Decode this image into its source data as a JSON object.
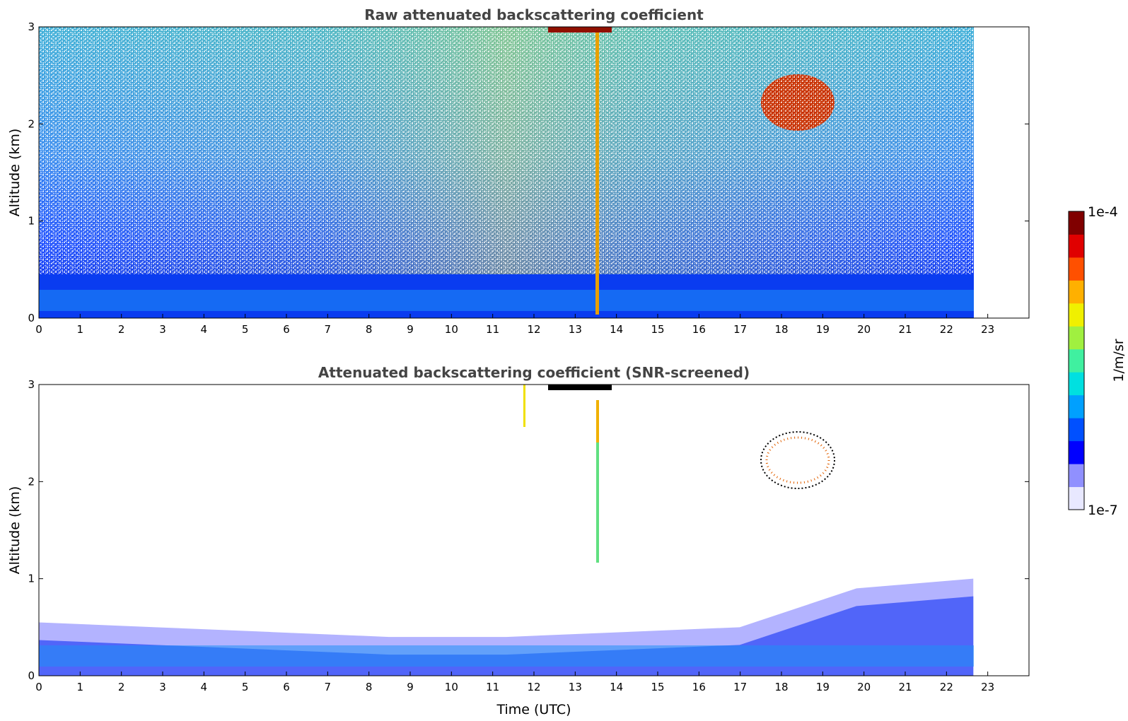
{
  "chart_data": [
    {
      "type": "heatmap",
      "title": "Raw attenuated backscattering coefficient",
      "xlabel": "",
      "ylabel": "Altitude (km)",
      "xlim": [
        0,
        24
      ],
      "ylim": [
        0,
        3
      ],
      "x_ticks": [
        "0",
        "1",
        "2",
        "3",
        "4",
        "5",
        "6",
        "7",
        "8",
        "9",
        "10",
        "11",
        "12",
        "13",
        "14",
        "15",
        "16",
        "17",
        "18",
        "19",
        "20",
        "21",
        "22",
        "23"
      ],
      "y_ticks": [
        "0",
        "1",
        "2",
        "3"
      ],
      "data_extent_x": [
        0,
        22.65
      ],
      "features": [
        {
          "kind": "boundary_layer",
          "top_km": 0.45
        },
        {
          "kind": "noisy_background",
          "range_km": [
            0.45,
            3
          ]
        },
        {
          "kind": "cloud",
          "x_range": [
            17.4,
            19.2
          ],
          "y_range_km": [
            1.9,
            2.6
          ]
        },
        {
          "kind": "vertical_streak",
          "x": 13.45,
          "y_range_km": [
            0,
            3
          ]
        },
        {
          "kind": "cloud_top",
          "x_range": [
            12.3,
            13.6
          ],
          "y_range_km": [
            2.9,
            3.0
          ]
        }
      ]
    },
    {
      "type": "heatmap",
      "title": "Attenuated backscattering coefficient (SNR-screened)",
      "xlabel": "Time (UTC)",
      "ylabel": "Altitude (km)",
      "xlim": [
        0,
        24
      ],
      "ylim": [
        0,
        3
      ],
      "x_ticks": [
        "0",
        "1",
        "2",
        "3",
        "4",
        "5",
        "6",
        "7",
        "8",
        "9",
        "10",
        "11",
        "12",
        "13",
        "14",
        "15",
        "16",
        "17",
        "18",
        "19",
        "20",
        "21",
        "22",
        "23"
      ],
      "y_ticks": [
        "0",
        "1",
        "2",
        "3"
      ],
      "data_extent_x": [
        0,
        22.65
      ],
      "features": [
        {
          "kind": "boundary_layer",
          "top_km": [
            0.55,
            0.5,
            0.45,
            0.4,
            0.4,
            0.45,
            0.5,
            0.9,
            1.0
          ]
        },
        {
          "kind": "cloud",
          "x_range": [
            17.4,
            19.2
          ],
          "y_range_km": [
            1.9,
            2.6
          ]
        },
        {
          "kind": "vertical_streak",
          "x": 13.45,
          "y_range_km": [
            1.2,
            2.9
          ]
        }
      ]
    }
  ],
  "colorbar": {
    "label": "1/m/sr",
    "min_label": "1e-7",
    "max_label": "1e-4",
    "scale": "log",
    "colors": [
      "#e8e8ff",
      "#9090ff",
      "#0000ff",
      "#0050ff",
      "#00a0ff",
      "#00e0e0",
      "#40f0a0",
      "#a0f040",
      "#f0f000",
      "#ffb000",
      "#ff5000",
      "#e00000",
      "#800000"
    ]
  }
}
